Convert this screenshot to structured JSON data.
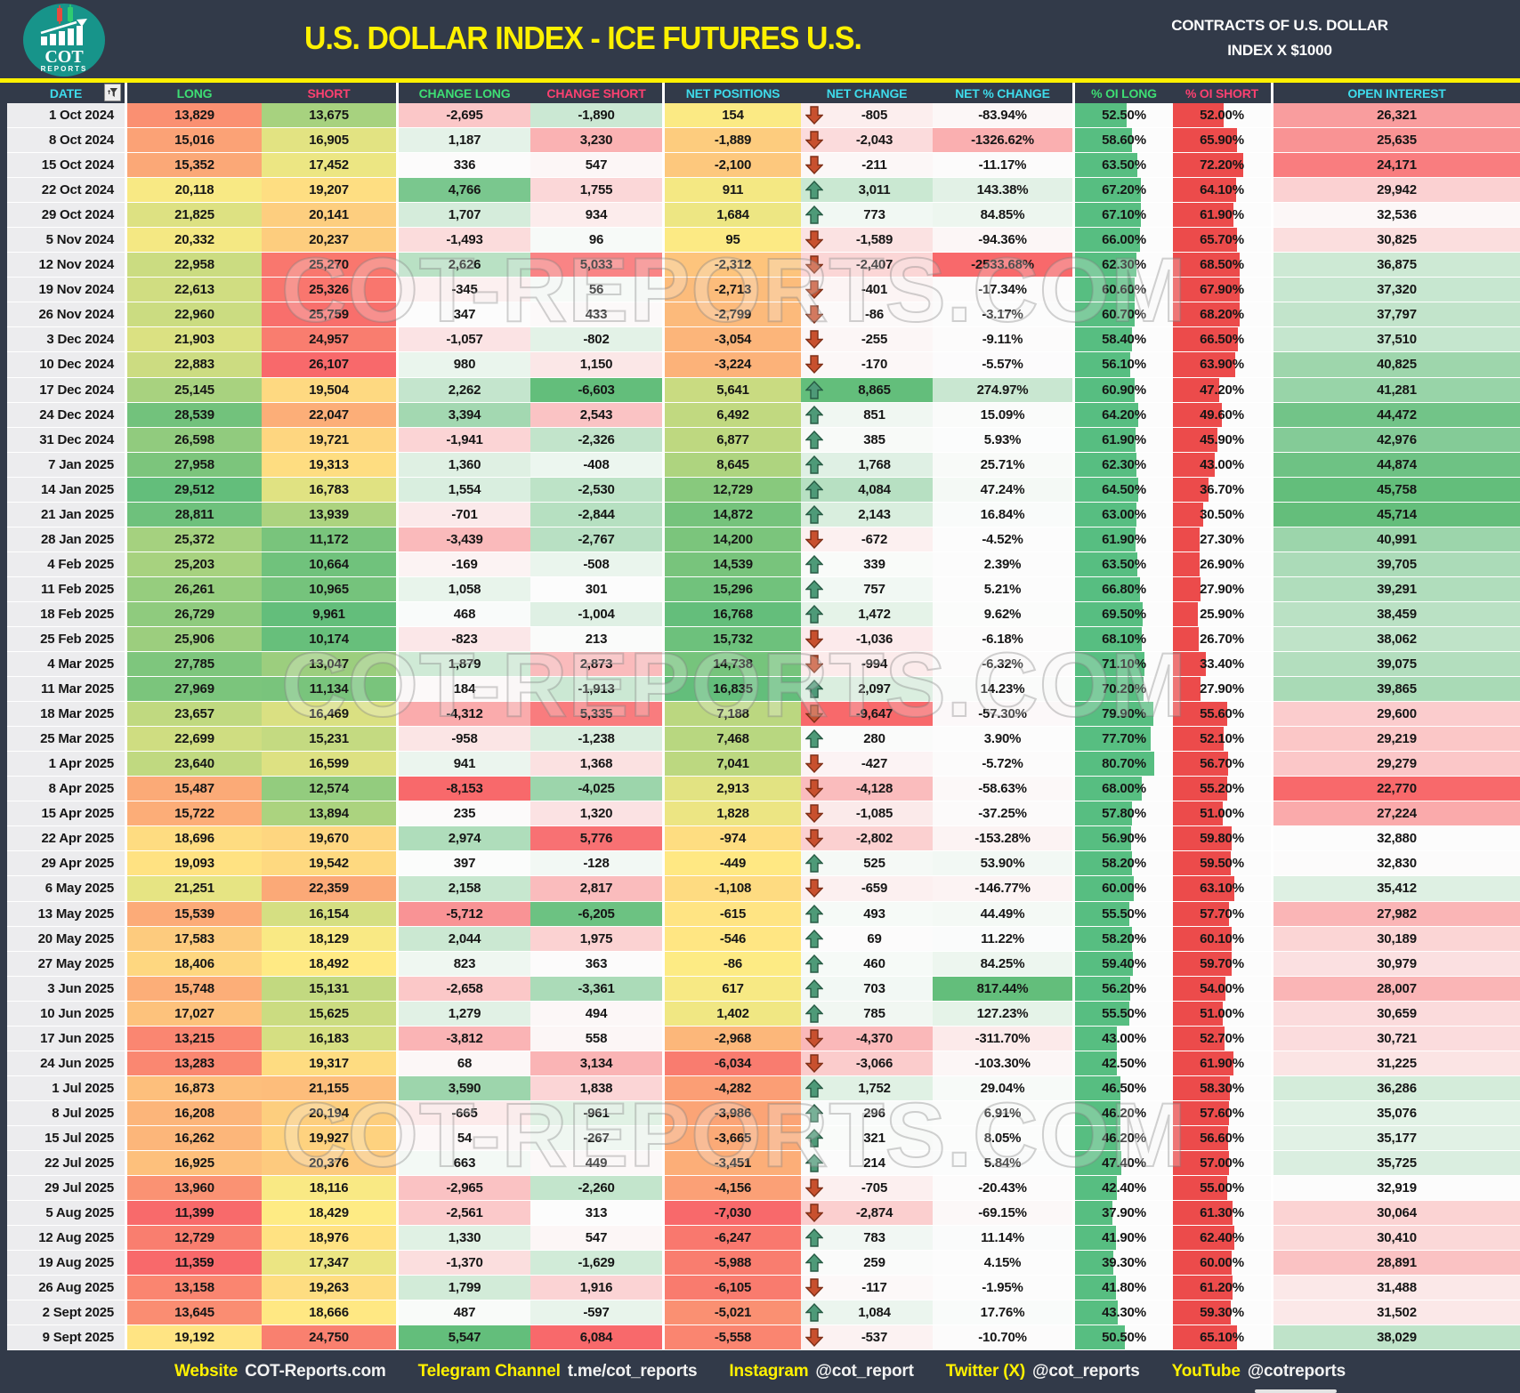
{
  "header": {
    "title": "U.S. DOLLAR INDEX - ICE FUTURES U.S.",
    "right_line1": "CONTRACTS OF U.S. DOLLAR",
    "right_line2": "INDEX X $1000",
    "logo_line1": "COT",
    "logo_line2": "REPORTS"
  },
  "watermark": "COT-REPORTS.COM",
  "footer": {
    "items": [
      {
        "label": "Website",
        "value": "COT-Reports.com"
      },
      {
        "label": "Telegram Channel",
        "value": "t.me/cot_reports"
      },
      {
        "label": "Instagram",
        "value": "@cot_report"
      },
      {
        "label": "Twitter (X)",
        "value": "@cot_reports"
      },
      {
        "label": "YouTube",
        "value": "@cotreports"
      }
    ]
  },
  "colors": {
    "navy": "#323A49",
    "yellow": "#FFF100",
    "header_cyan": "#3EDBEB",
    "header_green": "#3EDE74",
    "header_pink": "#FB4070",
    "heat_red": "#F8696B",
    "heat_yellow": "#FFEB84",
    "heat_green": "#63BE7B",
    "heat_white": "#FCFCFC",
    "bar_green": "#57BE81",
    "bar_red": "#EC4B4B",
    "arrow_up_fill": "#4E9A78",
    "arrow_up_stroke": "#275B44",
    "arrow_down_fill": "#C8502E",
    "arrow_down_stroke": "#7E2F17"
  },
  "chart_data": {
    "type": "table",
    "title": "U.S. DOLLAR INDEX - ICE FUTURES U.S.",
    "columns": [
      "DATE",
      "LONG",
      "SHORT",
      "CHANGE LONG",
      "CHANGE SHORT",
      "NET POSITIONS",
      "NET CHANGE",
      "NET % CHANGE",
      "% OI LONG",
      "% OI SHORT",
      "OPEN INTEREST"
    ],
    "rows": [
      [
        "1 Oct 2024",
        "13,829",
        "13,675",
        "-2,695",
        "-1,890",
        "154",
        "-805",
        "-83.94%",
        "52.50%",
        "52.00%",
        "26,321"
      ],
      [
        "8 Oct 2024",
        "15,016",
        "16,905",
        "1,187",
        "3,230",
        "-1,889",
        "-2,043",
        "-1326.62%",
        "58.60%",
        "65.90%",
        "25,635"
      ],
      [
        "15 Oct 2024",
        "15,352",
        "17,452",
        "336",
        "547",
        "-2,100",
        "-211",
        "-11.17%",
        "63.50%",
        "72.20%",
        "24,171"
      ],
      [
        "22 Oct 2024",
        "20,118",
        "19,207",
        "4,766",
        "1,755",
        "911",
        "3,011",
        "143.38%",
        "67.20%",
        "64.10%",
        "29,942"
      ],
      [
        "29 Oct 2024",
        "21,825",
        "20,141",
        "1,707",
        "934",
        "1,684",
        "773",
        "84.85%",
        "67.10%",
        "61.90%",
        "32,536"
      ],
      [
        "5 Nov 2024",
        "20,332",
        "20,237",
        "-1,493",
        "96",
        "95",
        "-1,589",
        "-94.36%",
        "66.00%",
        "65.70%",
        "30,825"
      ],
      [
        "12 Nov 2024",
        "22,958",
        "25,270",
        "2,626",
        "5,033",
        "-2,312",
        "-2,407",
        "-2533.68%",
        "62.30%",
        "68.50%",
        "36,875"
      ],
      [
        "19 Nov 2024",
        "22,613",
        "25,326",
        "-345",
        "56",
        "-2,713",
        "-401",
        "-17.34%",
        "60.60%",
        "67.90%",
        "37,320"
      ],
      [
        "26 Nov 2024",
        "22,960",
        "25,759",
        "347",
        "433",
        "-2,799",
        "-86",
        "-3.17%",
        "60.70%",
        "68.20%",
        "37,797"
      ],
      [
        "3 Dec 2024",
        "21,903",
        "24,957",
        "-1,057",
        "-802",
        "-3,054",
        "-255",
        "-9.11%",
        "58.40%",
        "66.50%",
        "37,510"
      ],
      [
        "10 Dec 2024",
        "22,883",
        "26,107",
        "980",
        "1,150",
        "-3,224",
        "-170",
        "-5.57%",
        "56.10%",
        "63.90%",
        "40,825"
      ],
      [
        "17 Dec 2024",
        "25,145",
        "19,504",
        "2,262",
        "-6,603",
        "5,641",
        "8,865",
        "274.97%",
        "60.90%",
        "47.20%",
        "41,281"
      ],
      [
        "24 Dec 2024",
        "28,539",
        "22,047",
        "3,394",
        "2,543",
        "6,492",
        "851",
        "15.09%",
        "64.20%",
        "49.60%",
        "44,472"
      ],
      [
        "31 Dec 2024",
        "26,598",
        "19,721",
        "-1,941",
        "-2,326",
        "6,877",
        "385",
        "5.93%",
        "61.90%",
        "45.90%",
        "42,976"
      ],
      [
        "7 Jan 2025",
        "27,958",
        "19,313",
        "1,360",
        "-408",
        "8,645",
        "1,768",
        "25.71%",
        "62.30%",
        "43.00%",
        "44,874"
      ],
      [
        "14 Jan 2025",
        "29,512",
        "16,783",
        "1,554",
        "-2,530",
        "12,729",
        "4,084",
        "47.24%",
        "64.50%",
        "36.70%",
        "45,758"
      ],
      [
        "21 Jan 2025",
        "28,811",
        "13,939",
        "-701",
        "-2,844",
        "14,872",
        "2,143",
        "16.84%",
        "63.00%",
        "30.50%",
        "45,714"
      ],
      [
        "28 Jan 2025",
        "25,372",
        "11,172",
        "-3,439",
        "-2,767",
        "14,200",
        "-672",
        "-4.52%",
        "61.90%",
        "27.30%",
        "40,991"
      ],
      [
        "4 Feb 2025",
        "25,203",
        "10,664",
        "-169",
        "-508",
        "14,539",
        "339",
        "2.39%",
        "63.50%",
        "26.90%",
        "39,705"
      ],
      [
        "11 Feb 2025",
        "26,261",
        "10,965",
        "1,058",
        "301",
        "15,296",
        "757",
        "5.21%",
        "66.80%",
        "27.90%",
        "39,291"
      ],
      [
        "18 Feb 2025",
        "26,729",
        "9,961",
        "468",
        "-1,004",
        "16,768",
        "1,472",
        "9.62%",
        "69.50%",
        "25.90%",
        "38,459"
      ],
      [
        "25 Feb 2025",
        "25,906",
        "10,174",
        "-823",
        "213",
        "15,732",
        "-1,036",
        "-6.18%",
        "68.10%",
        "26.70%",
        "38,062"
      ],
      [
        "4 Mar 2025",
        "27,785",
        "13,047",
        "1,879",
        "2,873",
        "14,738",
        "-994",
        "-6.32%",
        "71.10%",
        "33.40%",
        "39,075"
      ],
      [
        "11 Mar 2025",
        "27,969",
        "11,134",
        "184",
        "-1,913",
        "16,835",
        "2,097",
        "14.23%",
        "70.20%",
        "27.90%",
        "39,865"
      ],
      [
        "18 Mar 2025",
        "23,657",
        "16,469",
        "-4,312",
        "5,335",
        "7,188",
        "-9,647",
        "-57.30%",
        "79.90%",
        "55.60%",
        "29,600"
      ],
      [
        "25 Mar 2025",
        "22,699",
        "15,231",
        "-958",
        "-1,238",
        "7,468",
        "280",
        "3.90%",
        "77.70%",
        "52.10%",
        "29,219"
      ],
      [
        "1 Apr 2025",
        "23,640",
        "16,599",
        "941",
        "1,368",
        "7,041",
        "-427",
        "-5.72%",
        "80.70%",
        "56.70%",
        "29,279"
      ],
      [
        "8 Apr 2025",
        "15,487",
        "12,574",
        "-8,153",
        "-4,025",
        "2,913",
        "-4,128",
        "-58.63%",
        "68.00%",
        "55.20%",
        "22,770"
      ],
      [
        "15 Apr 2025",
        "15,722",
        "13,894",
        "235",
        "1,320",
        "1,828",
        "-1,085",
        "-37.25%",
        "57.80%",
        "51.00%",
        "27,224"
      ],
      [
        "22 Apr 2025",
        "18,696",
        "19,670",
        "2,974",
        "5,776",
        "-974",
        "-2,802",
        "-153.28%",
        "56.90%",
        "59.80%",
        "32,880"
      ],
      [
        "29 Apr 2025",
        "19,093",
        "19,542",
        "397",
        "-128",
        "-449",
        "525",
        "53.90%",
        "58.20%",
        "59.50%",
        "32,830"
      ],
      [
        "6 May 2025",
        "21,251",
        "22,359",
        "2,158",
        "2,817",
        "-1,108",
        "-659",
        "-146.77%",
        "60.00%",
        "63.10%",
        "35,412"
      ],
      [
        "13 May 2025",
        "15,539",
        "16,154",
        "-5,712",
        "-6,205",
        "-615",
        "493",
        "44.49%",
        "55.50%",
        "57.70%",
        "27,982"
      ],
      [
        "20 May 2025",
        "17,583",
        "18,129",
        "2,044",
        "1,975",
        "-546",
        "69",
        "11.22%",
        "58.20%",
        "60.10%",
        "30,189"
      ],
      [
        "27 May 2025",
        "18,406",
        "18,492",
        "823",
        "363",
        "-86",
        "460",
        "84.25%",
        "59.40%",
        "59.70%",
        "30,979"
      ],
      [
        "3 Jun 2025",
        "15,748",
        "15,131",
        "-2,658",
        "-3,361",
        "617",
        "703",
        "817.44%",
        "56.20%",
        "54.00%",
        "28,007"
      ],
      [
        "10 Jun 2025",
        "17,027",
        "15,625",
        "1,279",
        "494",
        "1,402",
        "785",
        "127.23%",
        "55.50%",
        "51.00%",
        "30,659"
      ],
      [
        "17 Jun 2025",
        "13,215",
        "16,183",
        "-3,812",
        "558",
        "-2,968",
        "-4,370",
        "-311.70%",
        "43.00%",
        "52.70%",
        "30,721"
      ],
      [
        "24 Jun 2025",
        "13,283",
        "19,317",
        "68",
        "3,134",
        "-6,034",
        "-3,066",
        "-103.30%",
        "42.50%",
        "61.90%",
        "31,225"
      ],
      [
        "1 Jul 2025",
        "16,873",
        "21,155",
        "3,590",
        "1,838",
        "-4,282",
        "1,752",
        "29.04%",
        "46.50%",
        "58.30%",
        "36,286"
      ],
      [
        "8 Jul 2025",
        "16,208",
        "20,194",
        "-665",
        "-961",
        "-3,986",
        "296",
        "6.91%",
        "46.20%",
        "57.60%",
        "35,076"
      ],
      [
        "15 Jul 2025",
        "16,262",
        "19,927",
        "54",
        "-267",
        "-3,665",
        "321",
        "8.05%",
        "46.20%",
        "56.60%",
        "35,177"
      ],
      [
        "22 Jul 2025",
        "16,925",
        "20,376",
        "663",
        "449",
        "-3,451",
        "214",
        "5.84%",
        "47.40%",
        "57.00%",
        "35,725"
      ],
      [
        "29 Jul 2025",
        "13,960",
        "18,116",
        "-2,965",
        "-2,260",
        "-4,156",
        "-705",
        "-20.43%",
        "42.40%",
        "55.00%",
        "32,919"
      ],
      [
        "5 Aug 2025",
        "11,399",
        "18,429",
        "-2,561",
        "313",
        "-7,030",
        "-2,874",
        "-69.15%",
        "37.90%",
        "61.30%",
        "30,064"
      ],
      [
        "12 Aug 2025",
        "12,729",
        "18,976",
        "1,330",
        "547",
        "-6,247",
        "783",
        "11.14%",
        "41.90%",
        "62.40%",
        "30,410"
      ],
      [
        "19 Aug 2025",
        "11,359",
        "17,347",
        "-1,370",
        "-1,629",
        "-5,988",
        "259",
        "4.15%",
        "39.30%",
        "60.00%",
        "28,891"
      ],
      [
        "26 Aug 2025",
        "13,158",
        "19,263",
        "1,799",
        "1,916",
        "-6,105",
        "-117",
        "-1.95%",
        "41.80%",
        "61.20%",
        "31,488"
      ],
      [
        "2 Sept 2025",
        "13,645",
        "18,666",
        "487",
        "-597",
        "-5,021",
        "1,084",
        "17.76%",
        "43.30%",
        "59.30%",
        "31,502"
      ],
      [
        "9 Sept 2025",
        "19,192",
        "24,750",
        "5,547",
        "6,084",
        "-5,558",
        "-537",
        "-10.70%",
        "50.50%",
        "65.10%",
        "38,029"
      ]
    ]
  }
}
